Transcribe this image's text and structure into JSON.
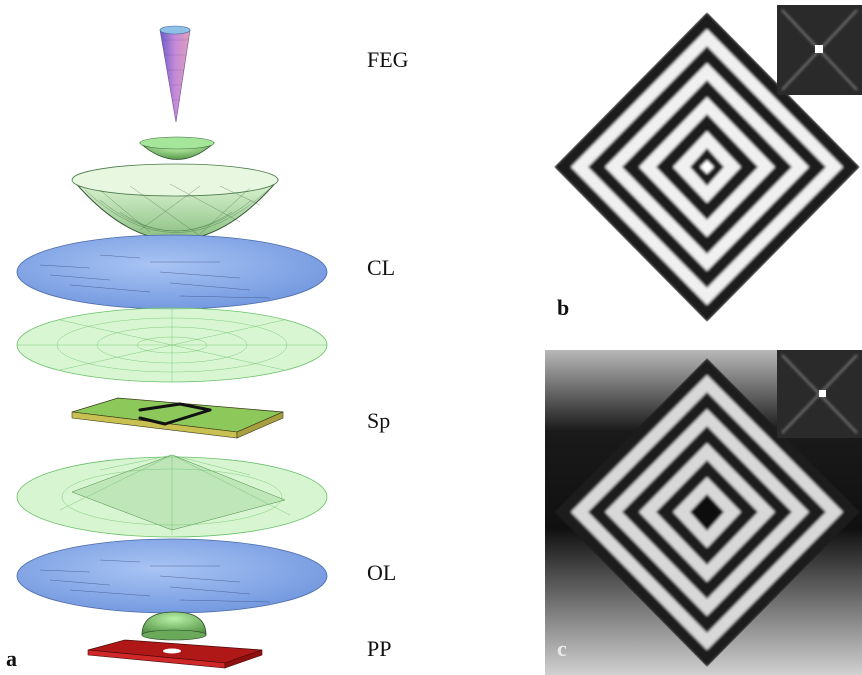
{
  "panels": {
    "a": {
      "letter": "a",
      "components": [
        {
          "id": "feg",
          "label": "FEG"
        },
        {
          "id": "cl",
          "label": "CL"
        },
        {
          "id": "sp",
          "label": "Sp"
        },
        {
          "id": "ol",
          "label": "OL"
        },
        {
          "id": "pp",
          "label": "PP"
        }
      ]
    },
    "b": {
      "letter": "b"
    },
    "c": {
      "letter": "c"
    }
  },
  "colors": {
    "tip": "#b080c0",
    "lens_blue": "#7fa4e4",
    "wire_green": "#8fe08f",
    "specimen": "#8cc85a",
    "phase_plate": "#b01818"
  }
}
